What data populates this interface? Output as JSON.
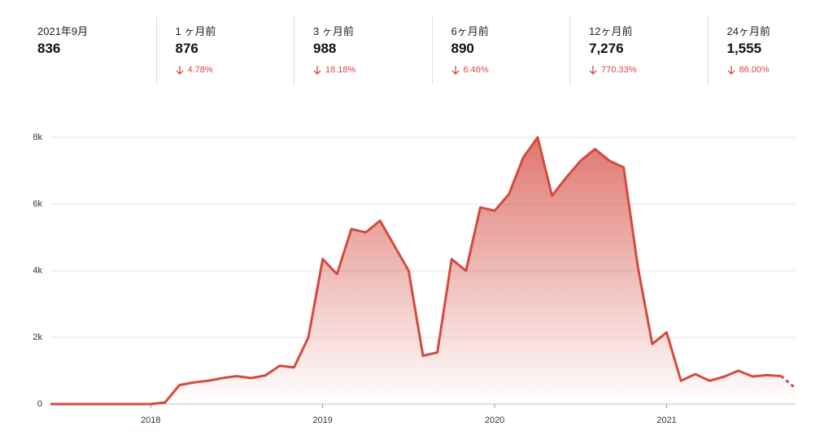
{
  "stats": [
    {
      "label": "2021年9月",
      "value": "836"
    },
    {
      "label": "1 ヶ月前",
      "value": "876",
      "change": "4.78%"
    },
    {
      "label": "3 ヶ月前",
      "value": "988",
      "change": "18.18%"
    },
    {
      "label": "6ヶ月前",
      "value": "890",
      "change": "6.46%"
    },
    {
      "label": "12ヶ月前",
      "value": "7,276",
      "change": "770.33%"
    },
    {
      "label": "24ヶ月前",
      "value": "1,555",
      "change": "86.00%"
    }
  ],
  "chart_data": {
    "type": "area",
    "color": "#d44a3f",
    "categories": [
      null,
      null,
      null,
      null,
      null,
      null,
      null,
      "2018",
      null,
      null,
      null,
      null,
      null,
      null,
      null,
      null,
      null,
      null,
      null,
      "2019",
      null,
      null,
      null,
      null,
      null,
      null,
      null,
      null,
      null,
      null,
      null,
      "2020",
      null,
      null,
      null,
      null,
      null,
      null,
      null,
      null,
      null,
      null,
      null,
      "2021",
      null,
      null,
      null,
      null,
      null,
      null,
      null,
      null,
      null
    ],
    "values": [
      0,
      0,
      0,
      0,
      0,
      0,
      0,
      0,
      50,
      570,
      650,
      700,
      780,
      840,
      780,
      860,
      1150,
      1100,
      2000,
      4350,
      3900,
      5250,
      5150,
      5500,
      4750,
      4000,
      1450,
      1550,
      4350,
      4000,
      5900,
      5800,
      6300,
      7400,
      8000,
      6250,
      6800,
      7300,
      7650,
      7300,
      7100,
      4100,
      1800,
      2150,
      700,
      900,
      700,
      820,
      1000,
      830,
      870,
      840,
      470
    ],
    "ylim": [
      0,
      8000
    ],
    "yticks": [
      0,
      {
        "value": 2000,
        "label": "2k"
      },
      {
        "value": 4000,
        "label": "4k"
      },
      {
        "value": 6000,
        "label": "6k"
      },
      {
        "value": 8000,
        "label": "8k"
      }
    ],
    "grid": true,
    "last_segment_dashed": true
  }
}
